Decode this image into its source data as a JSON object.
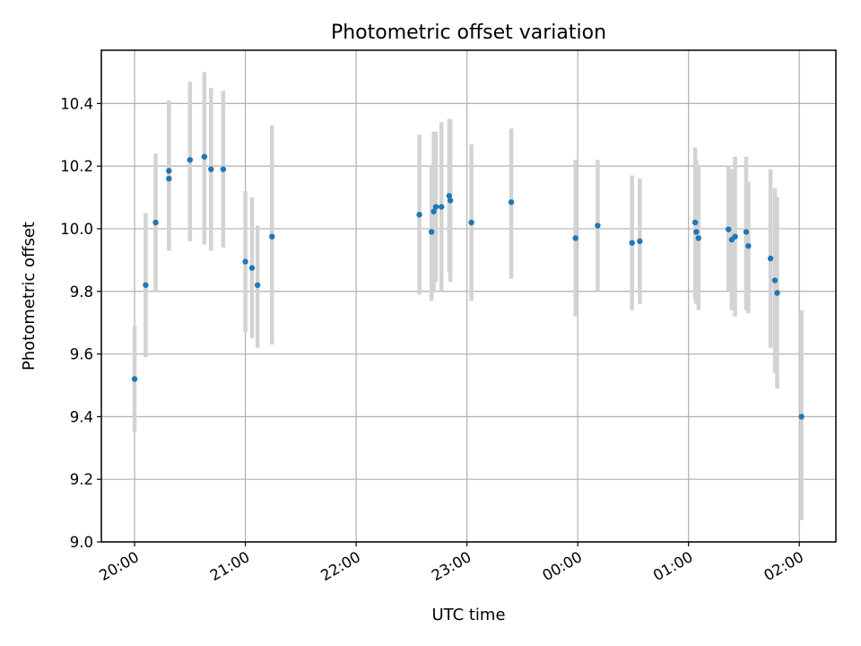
{
  "chart_data": {
    "type": "scatter",
    "title": "Photometric offset variation",
    "xlabel": "UTC time",
    "ylabel": "Photometric offset",
    "x_unit": "hours after 20:00 UTC",
    "xlim": [
      -0.3,
      6.33
    ],
    "ylim": [
      9.0,
      10.57
    ],
    "x_ticks": [
      {
        "value": 0,
        "label": "20:00"
      },
      {
        "value": 1,
        "label": "21:00"
      },
      {
        "value": 2,
        "label": "22:00"
      },
      {
        "value": 3,
        "label": "23:00"
      },
      {
        "value": 4,
        "label": "00:00"
      },
      {
        "value": 5,
        "label": "01:00"
      },
      {
        "value": 6,
        "label": "02:00"
      }
    ],
    "y_ticks": [
      9.0,
      9.2,
      9.4,
      9.6,
      9.8,
      10.0,
      10.2,
      10.4
    ],
    "grid": true,
    "colors": {
      "point": "#1f77b4",
      "errorbar": "#d3d3d3"
    },
    "points": [
      {
        "t": 0.0,
        "y": 9.52,
        "lo": 9.35,
        "hi": 9.69
      },
      {
        "t": 0.1,
        "y": 9.82,
        "lo": 9.59,
        "hi": 10.05
      },
      {
        "t": 0.19,
        "y": 10.02,
        "lo": 9.8,
        "hi": 10.24
      },
      {
        "t": 0.31,
        "y": 10.185,
        "lo": 9.95,
        "hi": 10.41
      },
      {
        "t": 0.31,
        "y": 10.16,
        "lo": 9.93,
        "hi": 10.39
      },
      {
        "t": 0.5,
        "y": 10.22,
        "lo": 9.96,
        "hi": 10.47
      },
      {
        "t": 0.63,
        "y": 10.23,
        "lo": 9.95,
        "hi": 10.5
      },
      {
        "t": 0.69,
        "y": 10.19,
        "lo": 9.93,
        "hi": 10.45
      },
      {
        "t": 0.8,
        "y": 10.19,
        "lo": 9.94,
        "hi": 10.44
      },
      {
        "t": 1.0,
        "y": 9.895,
        "lo": 9.67,
        "hi": 10.12
      },
      {
        "t": 1.06,
        "y": 9.875,
        "lo": 9.65,
        "hi": 10.1
      },
      {
        "t": 1.11,
        "y": 9.82,
        "lo": 9.62,
        "hi": 10.01
      },
      {
        "t": 1.24,
        "y": 9.975,
        "lo": 9.63,
        "hi": 10.33
      },
      {
        "t": 2.57,
        "y": 10.045,
        "lo": 9.79,
        "hi": 10.3
      },
      {
        "t": 2.68,
        "y": 9.99,
        "lo": 9.77,
        "hi": 10.2
      },
      {
        "t": 2.7,
        "y": 10.055,
        "lo": 9.8,
        "hi": 10.31
      },
      {
        "t": 2.72,
        "y": 10.07,
        "lo": 9.83,
        "hi": 10.31
      },
      {
        "t": 2.77,
        "y": 10.07,
        "lo": 9.8,
        "hi": 10.34
      },
      {
        "t": 2.84,
        "y": 10.105,
        "lo": 9.86,
        "hi": 10.35
      },
      {
        "t": 2.85,
        "y": 10.09,
        "lo": 9.83,
        "hi": 10.35
      },
      {
        "t": 3.04,
        "y": 10.02,
        "lo": 9.77,
        "hi": 10.27
      },
      {
        "t": 3.4,
        "y": 10.085,
        "lo": 9.84,
        "hi": 10.32
      },
      {
        "t": 3.98,
        "y": 9.97,
        "lo": 9.72,
        "hi": 10.22
      },
      {
        "t": 4.18,
        "y": 10.01,
        "lo": 9.8,
        "hi": 10.22
      },
      {
        "t": 4.49,
        "y": 9.955,
        "lo": 9.74,
        "hi": 10.17
      },
      {
        "t": 4.56,
        "y": 9.96,
        "lo": 9.76,
        "hi": 10.16
      },
      {
        "t": 5.06,
        "y": 10.02,
        "lo": 9.77,
        "hi": 10.26
      },
      {
        "t": 5.07,
        "y": 9.99,
        "lo": 9.76,
        "hi": 10.22
      },
      {
        "t": 5.09,
        "y": 9.97,
        "lo": 9.74,
        "hi": 10.2
      },
      {
        "t": 5.36,
        "y": 9.998,
        "lo": 9.8,
        "hi": 10.2
      },
      {
        "t": 5.39,
        "y": 9.965,
        "lo": 9.74,
        "hi": 10.19
      },
      {
        "t": 5.42,
        "y": 9.975,
        "lo": 9.72,
        "hi": 10.23
      },
      {
        "t": 5.52,
        "y": 9.99,
        "lo": 9.74,
        "hi": 10.23
      },
      {
        "t": 5.54,
        "y": 9.945,
        "lo": 9.73,
        "hi": 10.15
      },
      {
        "t": 5.74,
        "y": 9.905,
        "lo": 9.62,
        "hi": 10.19
      },
      {
        "t": 5.78,
        "y": 9.835,
        "lo": 9.54,
        "hi": 10.13
      },
      {
        "t": 5.8,
        "y": 9.795,
        "lo": 9.49,
        "hi": 10.1
      },
      {
        "t": 6.02,
        "y": 9.4,
        "lo": 9.07,
        "hi": 9.74
      }
    ]
  }
}
